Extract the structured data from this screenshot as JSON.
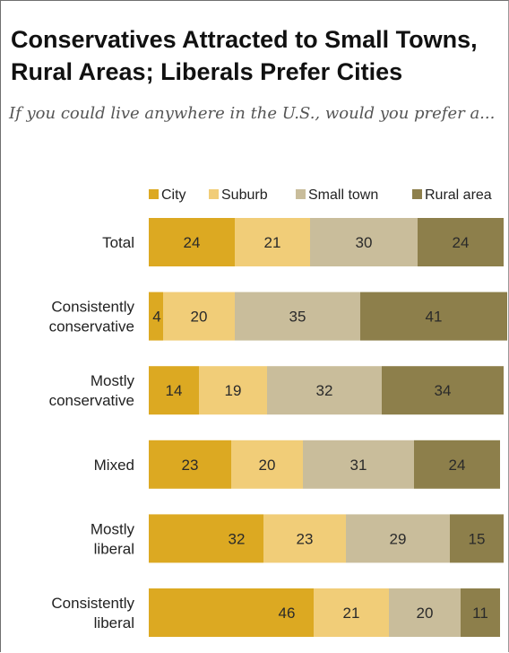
{
  "title": "Conservatives Attracted to Small Towns, Rural Areas; Liberals Prefer Cities",
  "subtitle": "If you could live anywhere in the U.S., would you prefer a...",
  "chart_data": {
    "type": "bar",
    "orientation": "horizontal",
    "stacked": true,
    "categories": [
      "Total",
      "Consistently conservative",
      "Mostly conservative",
      "Mixed",
      "Mostly liberal",
      "Consistently liberal"
    ],
    "category_lines": [
      [
        "Total"
      ],
      [
        "Consistently",
        "conservative"
      ],
      [
        "Mostly",
        "conservative"
      ],
      [
        "Mixed"
      ],
      [
        "Mostly",
        "liberal"
      ],
      [
        "Consistently",
        "liberal"
      ]
    ],
    "series": [
      {
        "name": "City",
        "color": "#dca922",
        "values": [
          24,
          4,
          14,
          23,
          32,
          46
        ]
      },
      {
        "name": "Suburb",
        "color": "#f1cd78",
        "values": [
          21,
          20,
          19,
          20,
          23,
          21
        ]
      },
      {
        "name": "Small town",
        "color": "#c9bd9b",
        "values": [
          30,
          35,
          32,
          31,
          29,
          20
        ]
      },
      {
        "name": "Rural area",
        "color": "#8d7f4b",
        "values": [
          24,
          41,
          34,
          24,
          15,
          11
        ]
      }
    ],
    "xlim": [
      0,
      100
    ],
    "grid": false,
    "legend": "top"
  }
}
